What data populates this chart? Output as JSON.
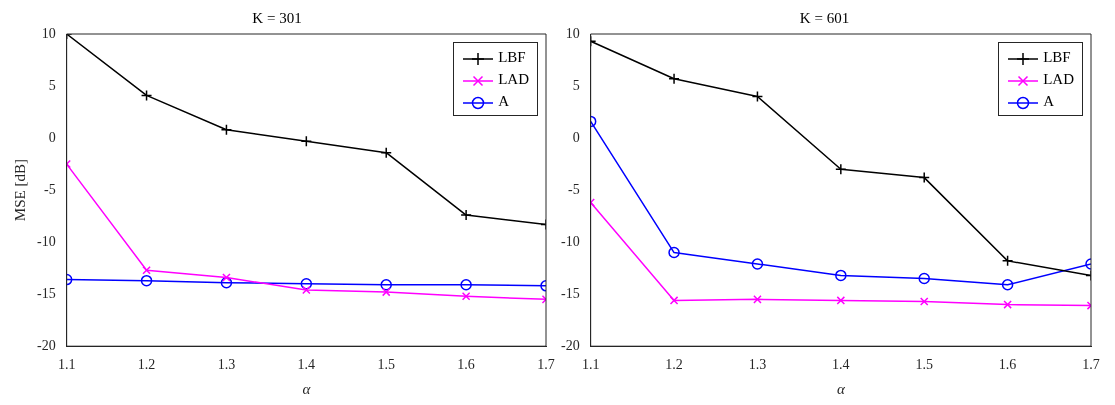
{
  "chart_data": [
    {
      "type": "line",
      "title": "K = 301",
      "xlabel": "α",
      "ylabel": "MSE [dB]",
      "x": [
        1.1,
        1.2,
        1.3,
        1.4,
        1.5,
        1.6,
        1.7
      ],
      "xlim": [
        1.1,
        1.7
      ],
      "xticks": [
        1.1,
        1.2,
        1.3,
        1.4,
        1.5,
        1.6,
        1.7
      ],
      "ylim": [
        -20,
        10
      ],
      "yticks": [
        -20,
        -15,
        -10,
        -5,
        0,
        5,
        10
      ],
      "grid": false,
      "legend": "top right",
      "line_style": "solid",
      "series": [
        {
          "name": "LBF",
          "color": "#000000",
          "marker": "cross",
          "values": [
            10,
            4.1,
            0.8,
            -0.3,
            -1.4,
            -7.4,
            -8.3
          ]
        },
        {
          "name": "LAD",
          "color": "#ff00ff",
          "marker": "cross",
          "values": [
            -2.5,
            -12.7,
            -13.4,
            -14.6,
            -14.8,
            -15.2,
            -15.5
          ]
        },
        {
          "name": "A",
          "color": "#0000ff",
          "marker": "circle",
          "values": [
            -13.6,
            -13.7,
            -13.9,
            -14.0,
            -14.1,
            -14.1,
            -14.2
          ]
        }
      ]
    },
    {
      "type": "line",
      "title": "K = 601",
      "xlabel": "α",
      "x": [
        1.1,
        1.2,
        1.3,
        1.4,
        1.5,
        1.6,
        1.7
      ],
      "xlim": [
        1.1,
        1.7
      ],
      "xticks": [
        1.1,
        1.2,
        1.3,
        1.4,
        1.5,
        1.6,
        1.7
      ],
      "ylim": [
        -20,
        10
      ],
      "yticks": [
        -20,
        -15,
        -10,
        -5,
        0,
        5,
        10
      ],
      "grid": false,
      "legend": "top right",
      "line_style": "solid",
      "series": [
        {
          "name": "LBF",
          "color": "#000000",
          "marker": "cross",
          "values": [
            9.3,
            5.7,
            4.0,
            -3.0,
            -3.8,
            -11.8,
            -13.2
          ]
        },
        {
          "name": "LAD",
          "color": "#ff00ff",
          "marker": "cross",
          "values": [
            -6.2,
            -15.6,
            -15.5,
            -15.6,
            -15.7,
            -16.0,
            -16.1
          ]
        },
        {
          "name": "A",
          "color": "#0000ff",
          "marker": "circle",
          "values": [
            1.6,
            -11.0,
            -12.1,
            -13.2,
            -13.5,
            -14.1,
            -12.1
          ]
        }
      ]
    }
  ]
}
